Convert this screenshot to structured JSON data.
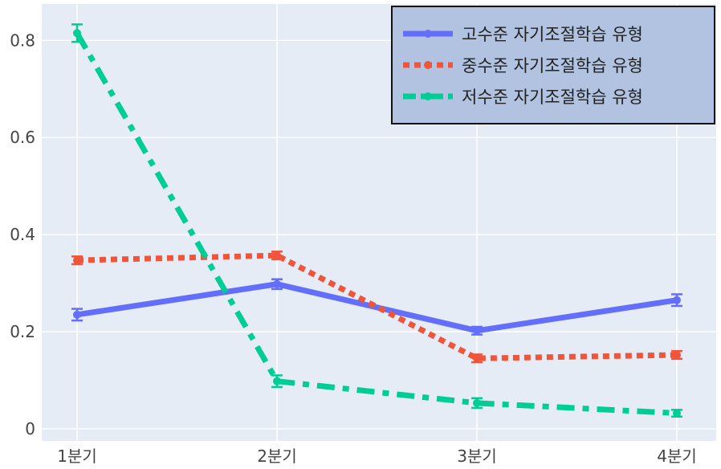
{
  "chart_data": {
    "type": "line",
    "title": "",
    "xlabel": "",
    "ylabel": "",
    "categories": [
      "1분기",
      "2분기",
      "3분기",
      "4분기"
    ],
    "ylim": [
      -0.025,
      0.875
    ],
    "yticks": [
      0,
      0.2,
      0.4,
      0.6,
      0.8
    ],
    "ytick_labels": [
      "0",
      "0.2",
      "0.4",
      "0.6",
      "0.8"
    ],
    "grid": true,
    "legend_position": "top-right",
    "series": [
      {
        "name": "고수준 자기조절학습 유형",
        "values": [
          0.235,
          0.298,
          0.202,
          0.265
        ],
        "errors": [
          0.012,
          0.01,
          0.008,
          0.012
        ],
        "color": "#636efa",
        "dash": "solid"
      },
      {
        "name": "중수준 자기조절학습 유형",
        "values": [
          0.347,
          0.357,
          0.145,
          0.152
        ],
        "errors": [
          0.008,
          0.008,
          0.008,
          0.008
        ],
        "color": "#ef553b",
        "dash": "dot"
      },
      {
        "name": "저수준 자기조절학습 유형",
        "values": [
          0.815,
          0.098,
          0.053,
          0.032
        ],
        "errors": [
          0.018,
          0.012,
          0.01,
          0.007
        ],
        "color": "#00cc96",
        "dash": "dashdot"
      }
    ]
  }
}
